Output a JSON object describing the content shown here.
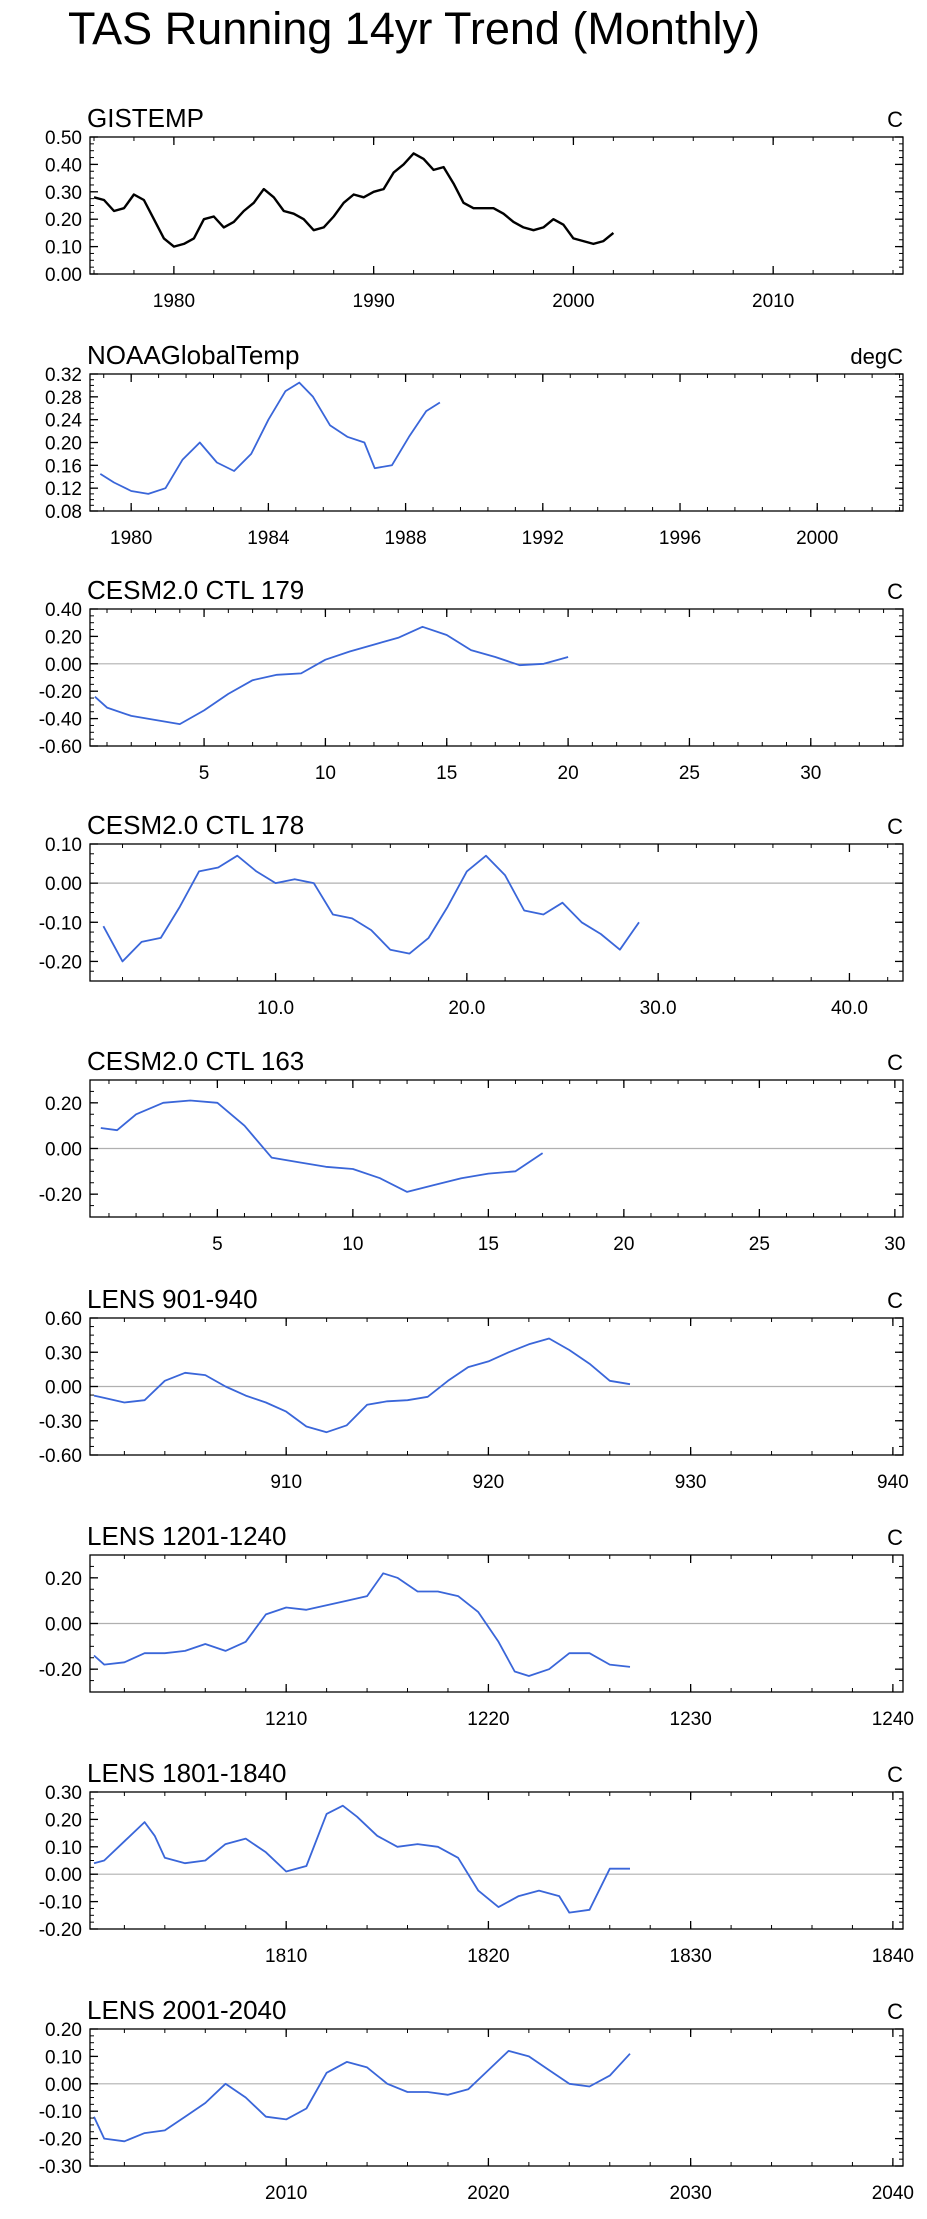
{
  "figure_title": "TAS Running 14yr Trend (Monthly)",
  "colors": {
    "gistemp": "#000000",
    "model": "#3a66d9",
    "zero": "#b0b0b0",
    "axis": "#000000"
  },
  "chart_data": [
    {
      "type": "line",
      "title": "GISTEMP",
      "units": "C",
      "xlim": [
        1975.8,
        2016.5
      ],
      "ylim": [
        0,
        0.5
      ],
      "zero_line": false,
      "xticks": [
        1980,
        1990,
        2000,
        2010
      ],
      "xtick_labels": [
        "1980",
        "1990",
        "2000",
        "2010"
      ],
      "yticks": [
        0,
        0.1,
        0.2,
        0.3,
        0.4,
        0.5
      ],
      "ytick_labels": [
        "0.00",
        "0.10",
        "0.20",
        "0.30",
        "0.40",
        "0.50"
      ],
      "series": [
        {
          "name": "GISTEMP",
          "x": [
            1976,
            1976.5,
            1977,
            1977.5,
            1978,
            1978.5,
            1979,
            1979.5,
            1980,
            1980.5,
            1981,
            1981.5,
            1982,
            1982.5,
            1983,
            1983.5,
            1984,
            1984.5,
            1985,
            1985.5,
            1986,
            1986.5,
            1987,
            1987.5,
            1988,
            1988.5,
            1989,
            1989.5,
            1990,
            1990.5,
            1991,
            1991.5,
            1992,
            1992.5,
            1993,
            1993.5,
            1994,
            1994.5,
            1995,
            1995.5,
            1996,
            1996.5,
            1997,
            1997.5,
            1998,
            1998.5,
            1999,
            1999.5,
            2000,
            2000.5,
            2001,
            2001.5,
            2002
          ],
          "y": [
            0.28,
            0.27,
            0.23,
            0.24,
            0.29,
            0.27,
            0.2,
            0.13,
            0.1,
            0.11,
            0.13,
            0.2,
            0.21,
            0.17,
            0.19,
            0.23,
            0.26,
            0.31,
            0.28,
            0.23,
            0.22,
            0.2,
            0.16,
            0.17,
            0.21,
            0.26,
            0.29,
            0.28,
            0.3,
            0.31,
            0.37,
            0.4,
            0.44,
            0.42,
            0.38,
            0.39,
            0.33,
            0.26,
            0.24,
            0.24,
            0.24,
            0.22,
            0.19,
            0.17,
            0.16,
            0.17,
            0.2,
            0.18,
            0.13,
            0.12,
            0.11,
            0.12,
            0.15
          ]
        }
      ]
    },
    {
      "type": "line",
      "title": "NOAAGlobalTemp",
      "units": "degC",
      "xlim": [
        1978.8,
        2002.5
      ],
      "ylim": [
        0.08,
        0.32
      ],
      "zero_line": false,
      "xticks": [
        1980,
        1984,
        1988,
        1992,
        1996,
        2000
      ],
      "xtick_labels": [
        "1980",
        "1984",
        "1988",
        "1992",
        "1996",
        "2000"
      ],
      "yticks": [
        0.08,
        0.12,
        0.16,
        0.2,
        0.24,
        0.28,
        0.32
      ],
      "ytick_labels": [
        "0.08",
        "0.12",
        "0.16",
        "0.20",
        "0.24",
        "0.28",
        "0.32"
      ],
      "series": [
        {
          "name": "NOAAGlobalTemp",
          "x": [
            1979.1,
            1979.5,
            1980,
            1980.5,
            1981,
            1981.5,
            1982,
            1982.5,
            1983,
            1983.5,
            1984,
            1984.5,
            1984.9,
            1985.3,
            1985.8,
            1986.3,
            1986.8,
            1987.1,
            1987.6,
            1988.1,
            1988.6,
            1989.0
          ],
          "y": [
            0.145,
            0.13,
            0.115,
            0.11,
            0.12,
            0.17,
            0.2,
            0.165,
            0.15,
            0.18,
            0.24,
            0.29,
            0.305,
            0.28,
            0.23,
            0.21,
            0.2,
            0.155,
            0.16,
            0.21,
            0.255,
            0.27
          ]
        }
      ]
    },
    {
      "type": "line",
      "title": "CESM2.0 CTL 179",
      "units": "C",
      "xlim": [
        0.3,
        33.8
      ],
      "ylim": [
        -0.6,
        0.4
      ],
      "zero_line": true,
      "xticks": [
        5,
        10,
        15,
        20,
        25,
        30
      ],
      "xtick_labels": [
        "5",
        "10",
        "15",
        "20",
        "25",
        "30"
      ],
      "yticks": [
        -0.6,
        -0.4,
        -0.2,
        0,
        0.2,
        0.4
      ],
      "ytick_labels": [
        "-0.60",
        "-0.40",
        "-0.20",
        "0.00",
        "0.20",
        "0.40"
      ],
      "series": [
        {
          "name": "CTL 179",
          "x": [
            0.5,
            1,
            2,
            3,
            4,
            5,
            6,
            7,
            8,
            9,
            10,
            11,
            12,
            13,
            14,
            15,
            16,
            17,
            18,
            19,
            20
          ],
          "y": [
            -0.24,
            -0.32,
            -0.38,
            -0.41,
            -0.44,
            -0.34,
            -0.22,
            -0.12,
            -0.08,
            -0.07,
            0.03,
            0.09,
            0.14,
            0.19,
            0.27,
            0.21,
            0.1,
            0.05,
            -0.01,
            0.0,
            0.05
          ]
        }
      ]
    },
    {
      "type": "line",
      "title": "CESM2.0 CTL 178",
      "units": "C",
      "xlim": [
        0.3,
        42.8
      ],
      "ylim": [
        -0.25,
        0.1
      ],
      "zero_line": true,
      "xticks": [
        10,
        20,
        30,
        40
      ],
      "xtick_labels": [
        "10.0",
        "20.0",
        "30.0",
        "40.0"
      ],
      "yticks": [
        -0.2,
        -0.1,
        0,
        0.1
      ],
      "ytick_labels": [
        "-0.20",
        "-0.10",
        "0.00",
        "0.10"
      ],
      "series": [
        {
          "name": "CTL 178",
          "x": [
            1,
            2,
            3,
            4,
            5,
            6,
            7,
            8,
            9,
            10,
            11,
            12,
            13,
            14,
            15,
            16,
            17,
            18,
            19,
            20,
            21,
            22,
            23,
            24,
            25,
            26,
            27,
            28,
            29
          ],
          "y": [
            -0.11,
            -0.2,
            -0.15,
            -0.14,
            -0.06,
            0.03,
            0.04,
            0.07,
            0.03,
            0.0,
            0.01,
            0.0,
            -0.08,
            -0.09,
            -0.12,
            -0.17,
            -0.18,
            -0.14,
            -0.06,
            0.03,
            0.07,
            0.02,
            -0.07,
            -0.08,
            -0.05,
            -0.1,
            -0.13,
            -0.17,
            -0.1
          ]
        }
      ]
    },
    {
      "type": "line",
      "title": "CESM2.0 CTL 163",
      "units": "C",
      "xlim": [
        0.3,
        30.3
      ],
      "ylim": [
        -0.3,
        0.3
      ],
      "zero_line": true,
      "xticks": [
        5,
        10,
        15,
        20,
        25,
        30
      ],
      "xtick_labels": [
        "5",
        "10",
        "15",
        "20",
        "25",
        "30"
      ],
      "yticks": [
        -0.2,
        0,
        0.2
      ],
      "ytick_labels": [
        "-0.20",
        "0.00",
        "0.20"
      ],
      "series": [
        {
          "name": "CTL 163",
          "x": [
            0.7,
            1.3,
            2,
            3,
            4,
            5,
            6,
            7,
            8,
            9,
            10,
            11,
            12,
            13,
            14,
            15,
            16,
            17
          ],
          "y": [
            0.09,
            0.08,
            0.15,
            0.2,
            0.21,
            0.2,
            0.1,
            -0.04,
            -0.06,
            -0.08,
            -0.09,
            -0.13,
            -0.19,
            -0.16,
            -0.13,
            -0.11,
            -0.1,
            -0.02
          ]
        }
      ]
    },
    {
      "type": "line",
      "title": "LENS 901-940",
      "units": "C",
      "xlim": [
        900.3,
        940.5
      ],
      "ylim": [
        -0.6,
        0.6
      ],
      "zero_line": true,
      "xticks": [
        910,
        920,
        930,
        940
      ],
      "xtick_labels": [
        "910",
        "920",
        "930",
        "940"
      ],
      "yticks": [
        -0.6,
        -0.3,
        0,
        0.3,
        0.6
      ],
      "ytick_labels": [
        "-0.60",
        "-0.30",
        "0.00",
        "0.30",
        "0.60"
      ],
      "series": [
        {
          "name": "LENS 901-940",
          "x": [
            900.5,
            901,
            902,
            903,
            904,
            905,
            906,
            907,
            908,
            909,
            910,
            911,
            912,
            913,
            914,
            915,
            916,
            917,
            918,
            919,
            920,
            921,
            922,
            923,
            924,
            925,
            926,
            927
          ],
          "y": [
            -0.08,
            -0.1,
            -0.14,
            -0.12,
            0.05,
            0.12,
            0.1,
            0.0,
            -0.08,
            -0.14,
            -0.22,
            -0.35,
            -0.4,
            -0.34,
            -0.16,
            -0.13,
            -0.12,
            -0.09,
            0.05,
            0.17,
            0.22,
            0.3,
            0.37,
            0.42,
            0.32,
            0.2,
            0.05,
            0.02
          ]
        }
      ]
    },
    {
      "type": "line",
      "title": "LENS 1201-1240",
      "units": "C",
      "xlim": [
        1200.3,
        1240.5
      ],
      "ylim": [
        -0.3,
        0.3
      ],
      "zero_line": true,
      "xticks": [
        1210,
        1220,
        1230,
        1240
      ],
      "xtick_labels": [
        "1210",
        "1220",
        "1230",
        "1240"
      ],
      "yticks": [
        -0.2,
        0,
        0.2
      ],
      "ytick_labels": [
        "-0.20",
        "0.00",
        "0.20"
      ],
      "series": [
        {
          "name": "LENS 1201-1240",
          "x": [
            1200.5,
            1201,
            1202,
            1203,
            1204,
            1205,
            1206,
            1207,
            1208,
            1209,
            1210,
            1211,
            1212,
            1213,
            1214,
            1214.8,
            1215.5,
            1216.5,
            1217.5,
            1218.5,
            1219.5,
            1220.5,
            1221.3,
            1222,
            1223,
            1224,
            1225,
            1226,
            1227
          ],
          "y": [
            -0.14,
            -0.18,
            -0.17,
            -0.13,
            -0.13,
            -0.12,
            -0.09,
            -0.12,
            -0.08,
            0.04,
            0.07,
            0.06,
            0.08,
            0.1,
            0.12,
            0.22,
            0.2,
            0.14,
            0.14,
            0.12,
            0.05,
            -0.08,
            -0.21,
            -0.23,
            -0.2,
            -0.13,
            -0.13,
            -0.18,
            -0.19
          ]
        }
      ]
    },
    {
      "type": "line",
      "title": "LENS 1801-1840",
      "units": "C",
      "xlim": [
        1800.3,
        1840.5
      ],
      "ylim": [
        -0.2,
        0.3
      ],
      "zero_line": true,
      "xticks": [
        1810,
        1820,
        1830,
        1840
      ],
      "xtick_labels": [
        "1810",
        "1820",
        "1830",
        "1840"
      ],
      "yticks": [
        -0.2,
        -0.1,
        0,
        0.1,
        0.2,
        0.3
      ],
      "ytick_labels": [
        "-0.20",
        "-0.10",
        "0.00",
        "0.10",
        "0.20",
        "0.30"
      ],
      "series": [
        {
          "name": "LENS 1801-1840",
          "x": [
            1800.5,
            1801,
            1802,
            1803,
            1803.5,
            1804,
            1805,
            1806,
            1807,
            1808,
            1809,
            1810,
            1811,
            1812,
            1812.8,
            1813.5,
            1814.5,
            1815.5,
            1816.5,
            1817.5,
            1818.5,
            1819.5,
            1820.5,
            1821.5,
            1822.5,
            1823.5,
            1824,
            1825,
            1826,
            1827
          ],
          "y": [
            0.04,
            0.05,
            0.12,
            0.19,
            0.14,
            0.06,
            0.04,
            0.05,
            0.11,
            0.13,
            0.08,
            0.01,
            0.03,
            0.22,
            0.25,
            0.21,
            0.14,
            0.1,
            0.11,
            0.1,
            0.06,
            -0.06,
            -0.12,
            -0.08,
            -0.06,
            -0.08,
            -0.14,
            -0.13,
            0.02,
            0.02
          ]
        }
      ]
    },
    {
      "type": "line",
      "title": "LENS 2001-2040",
      "units": "C",
      "xlim": [
        2000.3,
        2040.5
      ],
      "ylim": [
        -0.3,
        0.2
      ],
      "zero_line": true,
      "xticks": [
        2010,
        2020,
        2030,
        2040
      ],
      "xtick_labels": [
        "2010",
        "2020",
        "2030",
        "2040"
      ],
      "yticks": [
        -0.3,
        -0.2,
        -0.1,
        0,
        0.1,
        0.2
      ],
      "ytick_labels": [
        "-0.30",
        "-0.20",
        "-0.10",
        "0.00",
        "0.10",
        "0.20"
      ],
      "series": [
        {
          "name": "LENS 2001-2040",
          "x": [
            2000.5,
            2001,
            2002,
            2003,
            2004,
            2005,
            2006,
            2007,
            2008,
            2009,
            2010,
            2011,
            2012,
            2013,
            2014,
            2015,
            2016,
            2017,
            2018,
            2019,
            2020,
            2021,
            2022,
            2023,
            2024,
            2025,
            2026,
            2027
          ],
          "y": [
            -0.12,
            -0.2,
            -0.21,
            -0.18,
            -0.17,
            -0.12,
            -0.07,
            0.0,
            -0.05,
            -0.12,
            -0.13,
            -0.09,
            0.04,
            0.08,
            0.06,
            0.0,
            -0.03,
            -0.03,
            -0.04,
            -0.02,
            0.05,
            0.12,
            0.1,
            0.05,
            0.0,
            -0.01,
            0.03,
            0.11
          ]
        }
      ]
    }
  ]
}
